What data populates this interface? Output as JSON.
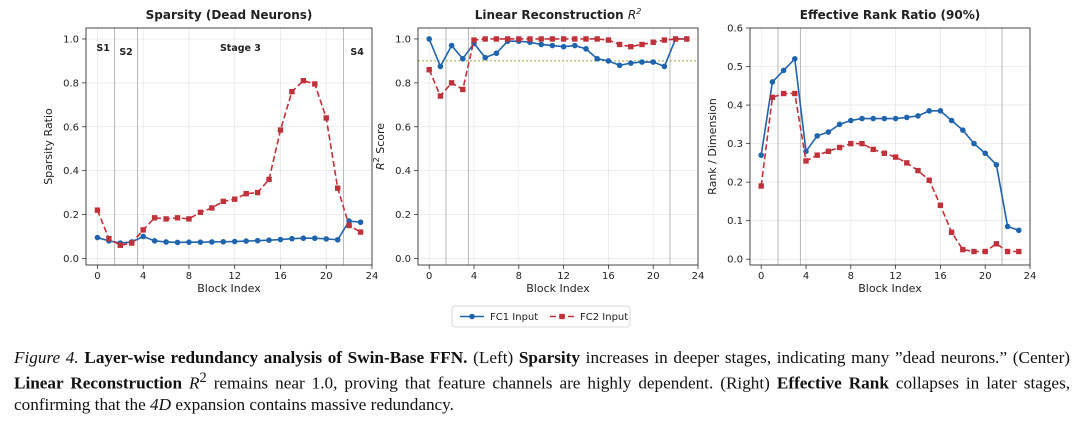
{
  "chart_data": [
    {
      "type": "line",
      "title": "Sparsity (Dead Neurons)",
      "xlabel": "Block Index",
      "ylabel": "Sparsity Ratio",
      "xlim": [
        -1,
        24
      ],
      "ylim": [
        -0.03,
        1.05
      ],
      "xticks": [
        0,
        4,
        8,
        12,
        16,
        20,
        24
      ],
      "xtick_labels": [
        "0",
        "4",
        "8",
        "12",
        "16",
        "20",
        "24"
      ],
      "yticks": [
        0.0,
        0.2,
        0.4,
        0.6,
        0.8,
        1.0
      ],
      "ytick_labels": [
        "0.0",
        "0.2",
        "0.4",
        "0.6",
        "0.8",
        "1.0"
      ],
      "vlines": [
        1.5,
        3.5,
        21.5
      ],
      "stage_labels": [
        {
          "text": "S1",
          "x": 0.5,
          "y": 0.96
        },
        {
          "text": "S2",
          "x": 2.5,
          "y": 0.94
        },
        {
          "text": "Stage 3",
          "x": 12.5,
          "y": 0.96
        },
        {
          "text": "S4",
          "x": 22.7,
          "y": 0.94
        }
      ],
      "x": [
        0,
        1,
        2,
        3,
        4,
        5,
        6,
        7,
        8,
        9,
        10,
        11,
        12,
        13,
        14,
        15,
        16,
        17,
        18,
        19,
        20,
        21,
        22,
        23
      ],
      "series": [
        {
          "name": "FC1 Input",
          "values": [
            0.095,
            0.08,
            0.07,
            0.075,
            0.1,
            0.08,
            0.075,
            0.073,
            0.074,
            0.074,
            0.075,
            0.076,
            0.077,
            0.079,
            0.081,
            0.083,
            0.086,
            0.09,
            0.092,
            0.092,
            0.089,
            0.085,
            0.17,
            0.165
          ]
        },
        {
          "name": "FC2 Input",
          "values": [
            0.22,
            0.09,
            0.06,
            0.07,
            0.13,
            0.185,
            0.18,
            0.185,
            0.18,
            0.21,
            0.23,
            0.26,
            0.27,
            0.295,
            0.3,
            0.36,
            0.585,
            0.76,
            0.81,
            0.795,
            0.64,
            0.32,
            0.15,
            0.12
          ]
        }
      ]
    },
    {
      "type": "line",
      "title": "Linear Reconstruction",
      "title_math": "R",
      "title_sup": "2",
      "xlabel": "Block Index",
      "ylabel": "Score",
      "ylabel_math": "R",
      "ylabel_sup": "2",
      "xlim": [
        -1,
        24
      ],
      "ylim": [
        -0.03,
        1.05
      ],
      "xticks": [
        0,
        4,
        8,
        12,
        16,
        20,
        24
      ],
      "xtick_labels": [
        "0",
        "4",
        "8",
        "12",
        "16",
        "20",
        "24"
      ],
      "yticks": [
        0.0,
        0.2,
        0.4,
        0.6,
        0.8,
        1.0
      ],
      "ytick_labels": [
        "0.0",
        "0.2",
        "0.4",
        "0.6",
        "0.8",
        "1.0"
      ],
      "vlines": [
        1.5,
        3.5,
        21.5
      ],
      "hline": 0.9,
      "x": [
        0,
        1,
        2,
        3,
        4,
        5,
        6,
        7,
        8,
        9,
        10,
        11,
        12,
        13,
        14,
        15,
        16,
        17,
        18,
        19,
        20,
        21,
        22,
        23
      ],
      "series": [
        {
          "name": "FC1 Input",
          "values": [
            1.0,
            0.875,
            0.97,
            0.91,
            0.98,
            0.915,
            0.935,
            0.99,
            0.99,
            0.985,
            0.975,
            0.97,
            0.965,
            0.97,
            0.955,
            0.91,
            0.9,
            0.88,
            0.89,
            0.895,
            0.895,
            0.875,
            1.0,
            1.0
          ]
        },
        {
          "name": "FC2 Input",
          "values": [
            0.86,
            0.74,
            0.8,
            0.77,
            0.995,
            1.0,
            1.0,
            1.0,
            1.0,
            1.0,
            1.0,
            1.0,
            1.0,
            1.0,
            1.0,
            1.0,
            0.995,
            0.975,
            0.965,
            0.975,
            0.985,
            0.995,
            1.0,
            1.0
          ]
        }
      ]
    },
    {
      "type": "line",
      "title": "Effective Rank Ratio (90%)",
      "xlabel": "Block Index",
      "ylabel": "Rank / Dimension",
      "xlim": [
        -1,
        24
      ],
      "ylim": [
        -0.015,
        0.6
      ],
      "xticks": [
        0,
        4,
        8,
        12,
        16,
        20,
        24
      ],
      "xtick_labels": [
        "0",
        "4",
        "8",
        "12",
        "16",
        "20",
        "24"
      ],
      "yticks": [
        0.0,
        0.1,
        0.2,
        0.3,
        0.4,
        0.5,
        0.6
      ],
      "ytick_labels": [
        "0.0",
        "0.1",
        "0.2",
        "0.3",
        "0.4",
        "0.5",
        "0.6"
      ],
      "vlines": [
        1.5,
        3.5,
        21.5
      ],
      "x": [
        0,
        1,
        2,
        3,
        4,
        5,
        6,
        7,
        8,
        9,
        10,
        11,
        12,
        13,
        14,
        15,
        16,
        17,
        18,
        19,
        20,
        21,
        22,
        23
      ],
      "series": [
        {
          "name": "FC1 Input",
          "values": [
            0.27,
            0.46,
            0.49,
            0.52,
            0.28,
            0.32,
            0.33,
            0.35,
            0.36,
            0.365,
            0.365,
            0.365,
            0.365,
            0.368,
            0.372,
            0.385,
            0.385,
            0.36,
            0.335,
            0.3,
            0.275,
            0.245,
            0.085,
            0.075
          ]
        },
        {
          "name": "FC2 Input",
          "values": [
            0.19,
            0.42,
            0.43,
            0.43,
            0.255,
            0.27,
            0.28,
            0.29,
            0.3,
            0.3,
            0.285,
            0.275,
            0.265,
            0.25,
            0.23,
            0.205,
            0.14,
            0.07,
            0.025,
            0.02,
            0.02,
            0.04,
            0.02,
            0.02
          ]
        }
      ]
    }
  ],
  "legend": {
    "items": [
      {
        "name": "FC1 Input",
        "color": "#1f64ad",
        "marker": "circle"
      },
      {
        "name": "FC2 Input",
        "color": "#c0323b",
        "marker": "square"
      }
    ]
  },
  "colors": {
    "fc1": "#1f64ad",
    "fc2": "#c0323b",
    "vline": "#b0b0b0",
    "hline": "#9aaa3c"
  },
  "caption": {
    "label": "Figure 4.",
    "title": "Layer-wise redundancy analysis of Swin-Base FFN.",
    "part1": "(Left)",
    "kw1": "Sparsity",
    "part2": "increases in deeper stages, indicating many ”dead neurons.” (Center)",
    "kw2": "Linear Reconstruction",
    "math1": "R",
    "sup1": "2",
    "part3": "remains near 1.0, proving that feature channels are highly dependent. (Right)",
    "kw3": "Effective Rank",
    "part4": "collapses in later stages, confirming that the",
    "math2": "4D",
    "part5": "expansion contains massive redundancy."
  }
}
